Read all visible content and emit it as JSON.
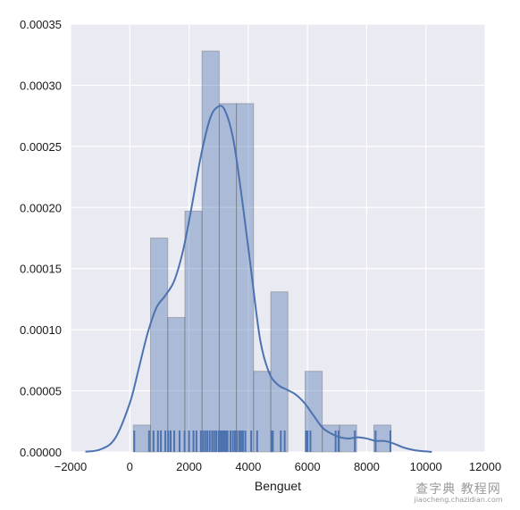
{
  "chart_data": {
    "type": "histogram",
    "xlabel": "Benguet",
    "ylabel": "",
    "xlim": [
      -2000,
      12000
    ],
    "ylim": [
      0,
      0.00035
    ],
    "grid": true,
    "x_ticks": [
      -2000,
      0,
      2000,
      4000,
      6000,
      8000,
      10000,
      12000
    ],
    "x_tick_labels": [
      "−2000",
      "0",
      "2000",
      "4000",
      "6000",
      "8000",
      "10000",
      "12000"
    ],
    "y_ticks": [
      0,
      5e-05,
      0.0001,
      0.00015,
      0.0002,
      0.00025,
      0.0003,
      0.00035
    ],
    "y_tick_labels": [
      "0.00000",
      "0.00005",
      "0.00010",
      "0.00015",
      "0.00020",
      "0.00025",
      "0.00030",
      "0.00035"
    ],
    "histogram": {
      "bin_edges": [
        120,
        700,
        1280,
        1860,
        2440,
        3020,
        3600,
        4180,
        4760,
        5340,
        5920,
        6500,
        7080,
        7660,
        8240,
        8820
      ],
      "density": [
        2.2e-05,
        0.000175,
        0.00011,
        0.000197,
        0.000328,
        0.000285,
        0.000285,
        6.6e-05,
        0.000131,
        0,
        6.6e-05,
        2.2e-05,
        2.2e-05,
        0,
        2.2e-05
      ],
      "color": "#4c72b0",
      "alpha": 0.4
    },
    "kde": {
      "color": "#4c72b0",
      "x": [
        -1500,
        -1000,
        -500,
        0,
        300,
        600,
        900,
        1200,
        1500,
        1800,
        2100,
        2400,
        2700,
        2950,
        3200,
        3500,
        3800,
        4100,
        4400,
        4700,
        5000,
        5300,
        5600,
        5900,
        6200,
        6500,
        6800,
        7100,
        7400,
        7700,
        8000,
        8300,
        8600,
        8900,
        9200,
        9500,
        9800,
        10200
      ],
      "y": [
        2e-07,
        2e-06,
        1.1e-05,
        4e-05,
        6.8e-05,
        9.7e-05,
        0.000118,
        0.000128,
        0.00014,
        0.000165,
        0.000202,
        0.000242,
        0.000272,
        0.000282,
        0.00028,
        0.000255,
        0.000205,
        0.000148,
        9.2e-05,
        6.5e-05,
        5.5e-05,
        5.1e-05,
        4.7e-05,
        4e-05,
        3e-05,
        2e-05,
        1.5e-05,
        1.2e-05,
        1.1e-05,
        1.2e-05,
        1.1e-05,
        9e-06,
        9e-06,
        7e-06,
        4e-06,
        2e-06,
        8e-07,
        1e-07
      ]
    },
    "rug": {
      "color": "#4c72b0",
      "values": [
        150,
        650,
        800,
        950,
        1050,
        1200,
        1300,
        1380,
        1500,
        1680,
        1850,
        2000,
        2150,
        2250,
        2400,
        2480,
        2550,
        2620,
        2700,
        2780,
        2850,
        2920,
        3000,
        3050,
        3100,
        3150,
        3200,
        3250,
        3300,
        3400,
        3480,
        3550,
        3620,
        3700,
        3760,
        3820,
        3900,
        4100,
        4300,
        4780,
        4830,
        5100,
        5230,
        5950,
        6000,
        6100,
        6950,
        7050,
        7600,
        8300,
        8800
      ]
    }
  },
  "watermark": {
    "main": "查字典 教程网",
    "url": "jiaocheng.chazidian.com"
  }
}
